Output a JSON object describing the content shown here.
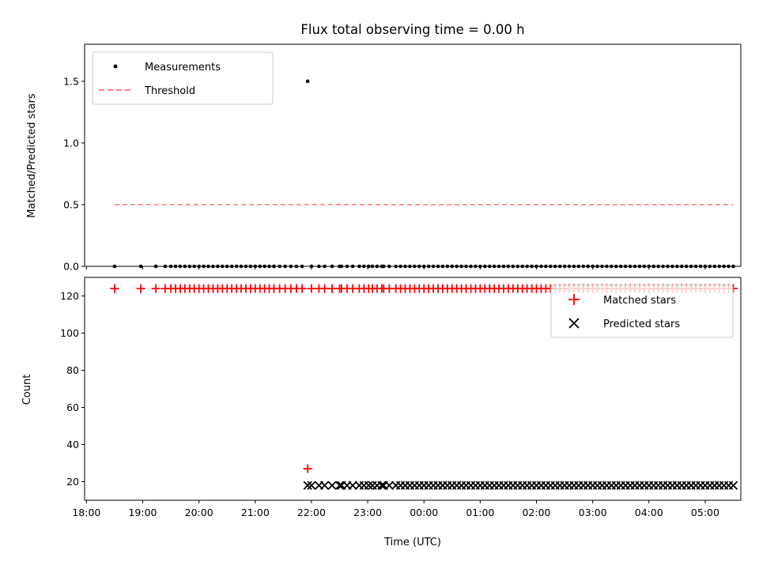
{
  "chart_data": [
    {
      "type": "scatter",
      "title": "Flux total observing time = 0.00 h",
      "xlabel": "",
      "ylabel": "Matched/Predicted stars",
      "x_unit": "minutes since 18:00 UTC",
      "xlim": [
        -2,
        698
      ],
      "ylim": [
        0,
        1.8
      ],
      "yticks": [
        0.0,
        0.5,
        1.0,
        1.5
      ],
      "ytick_labels": [
        "0.0",
        "0.5",
        "1.0",
        "1.5"
      ],
      "legend": [
        "Measurements",
        "Threshold"
      ],
      "legend_position": "top-left",
      "series": [
        {
          "name": "Measurements",
          "marker": "dot",
          "color": "#000000",
          "x": [
            30,
            58,
            74,
            84,
            90,
            95,
            100,
            105,
            110,
            115,
            120,
            125,
            130,
            135,
            140,
            145,
            150,
            155,
            160,
            165,
            170,
            175,
            180,
            185,
            190,
            195,
            200,
            200,
            206,
            212,
            218,
            224,
            230,
            236,
            240,
            248,
            254,
            262,
            270,
            272,
            278,
            284,
            291,
            296,
            301,
            305,
            310,
            315,
            317,
            323,
            330,
            335,
            340,
            345,
            350,
            355,
            360,
            365,
            370,
            375,
            380,
            385,
            390,
            395,
            400,
            405,
            410,
            415,
            420,
            425,
            430,
            435,
            440,
            445,
            450,
            455,
            460,
            465,
            470,
            475,
            480,
            485,
            490,
            495,
            500,
            505,
            510,
            515,
            520,
            525,
            530,
            535,
            540,
            545,
            550,
            555,
            560,
            565,
            570,
            575,
            580,
            585,
            590,
            595,
            600,
            605,
            610,
            615,
            620,
            625,
            630,
            635,
            640,
            645,
            650,
            655,
            660,
            665,
            670,
            675,
            680,
            685,
            690
          ],
          "y": [
            0,
            0,
            0,
            0,
            0,
            0,
            0,
            0,
            0,
            0,
            0,
            0,
            0,
            0,
            0,
            0,
            0,
            0,
            0,
            0,
            0,
            0,
            0,
            0,
            0,
            0,
            0,
            0,
            0,
            0,
            0,
            0,
            0,
            1.5,
            0,
            0,
            0,
            0,
            0,
            0,
            0,
            0,
            0,
            0,
            0,
            0,
            0,
            0,
            0,
            0,
            0,
            0,
            0,
            0,
            0,
            0,
            0,
            0,
            0,
            0,
            0,
            0,
            0,
            0,
            0,
            0,
            0,
            0,
            0,
            0,
            0,
            0,
            0,
            0,
            0,
            0,
            0,
            0,
            0,
            0,
            0,
            0,
            0,
            0,
            0,
            0,
            0,
            0,
            0,
            0,
            0,
            0,
            0,
            0,
            0,
            0,
            0,
            0,
            0,
            0,
            0,
            0,
            0,
            0,
            0,
            0,
            0,
            0,
            0,
            0,
            0,
            0,
            0,
            0,
            0,
            0,
            0,
            0,
            0,
            0,
            0,
            0,
            0
          ]
        },
        {
          "name": "Threshold",
          "style": "dashed",
          "color": "#ff7f7f",
          "x": [
            30,
            690
          ],
          "y": [
            0.5,
            0.5
          ]
        }
      ]
    },
    {
      "type": "scatter",
      "title": "",
      "xlabel": "Time (UTC)",
      "ylabel": "Count",
      "x_unit": "minutes since 18:00 UTC",
      "xlim": [
        -2,
        698
      ],
      "ylim": [
        10,
        130
      ],
      "yticks": [
        20,
        40,
        60,
        80,
        100,
        120
      ],
      "ytick_labels": [
        "20",
        "40",
        "60",
        "80",
        "100",
        "120"
      ],
      "xticks": [
        0,
        60,
        120,
        180,
        240,
        300,
        360,
        420,
        480,
        540,
        600,
        660
      ],
      "xtick_labels": [
        "18:00",
        "19:00",
        "20:00",
        "21:00",
        "22:00",
        "23:00",
        "00:00",
        "01:00",
        "02:00",
        "03:00",
        "04:00",
        "05:00"
      ],
      "legend": [
        "Matched stars",
        "Predicted stars"
      ],
      "legend_position": "top-right",
      "series": [
        {
          "name": "Matched stars",
          "marker": "plus",
          "color": "#ff0000",
          "x": [
            30,
            58,
            74,
            84,
            90,
            95,
            100,
            105,
            110,
            115,
            120,
            125,
            130,
            135,
            140,
            145,
            150,
            155,
            160,
            165,
            170,
            175,
            180,
            185,
            190,
            195,
            200,
            206,
            212,
            218,
            224,
            230,
            236,
            240,
            248,
            254,
            262,
            270,
            272,
            278,
            284,
            291,
            296,
            301,
            305,
            310,
            315,
            317,
            323,
            330,
            335,
            340,
            345,
            350,
            355,
            360,
            365,
            370,
            375,
            380,
            385,
            390,
            395,
            400,
            405,
            410,
            415,
            420,
            425,
            430,
            435,
            440,
            445,
            450,
            455,
            460,
            465,
            470,
            475,
            480,
            485,
            490,
            495,
            500,
            505,
            510,
            515,
            520,
            525,
            530,
            535,
            540,
            545,
            550,
            555,
            560,
            565,
            570,
            575,
            580,
            585,
            590,
            595,
            600,
            605,
            610,
            615,
            620,
            625,
            630,
            635,
            640,
            645,
            650,
            655,
            660,
            665,
            670,
            675,
            680,
            685,
            690
          ],
          "y": [
            124,
            124,
            124,
            124,
            124,
            124,
            124,
            124,
            124,
            124,
            124,
            124,
            124,
            124,
            124,
            124,
            124,
            124,
            124,
            124,
            124,
            124,
            124,
            124,
            124,
            124,
            124,
            124,
            124,
            124,
            124,
            124,
            27,
            124,
            124,
            124,
            124,
            124,
            124,
            124,
            124,
            124,
            124,
            124,
            124,
            124,
            124,
            124,
            124,
            124,
            124,
            124,
            124,
            124,
            124,
            124,
            124,
            124,
            124,
            124,
            124,
            124,
            124,
            124,
            124,
            124,
            124,
            124,
            124,
            124,
            124,
            124,
            124,
            124,
            124,
            124,
            124,
            124,
            124,
            124,
            124,
            124,
            124,
            124,
            124,
            124,
            124,
            124,
            124,
            124,
            124,
            124,
            124,
            124,
            124,
            124,
            124,
            124,
            124,
            124,
            124,
            124,
            124,
            124,
            124,
            124,
            124,
            124,
            124,
            124,
            124,
            124,
            124,
            124,
            124,
            124,
            124,
            124,
            124,
            124,
            124,
            124
          ]
        },
        {
          "name": "Predicted stars",
          "marker": "x",
          "color": "#000000",
          "x": [
            236,
            240,
            248,
            254,
            262,
            270,
            272,
            278,
            284,
            291,
            296,
            301,
            305,
            310,
            315,
            317,
            323,
            330,
            335,
            340,
            345,
            350,
            355,
            360,
            365,
            370,
            375,
            380,
            385,
            390,
            395,
            400,
            405,
            410,
            415,
            420,
            425,
            430,
            435,
            440,
            445,
            450,
            455,
            460,
            465,
            470,
            475,
            480,
            485,
            490,
            495,
            500,
            505,
            510,
            515,
            520,
            525,
            530,
            535,
            540,
            545,
            550,
            555,
            560,
            565,
            570,
            575,
            580,
            585,
            590,
            595,
            600,
            605,
            610,
            615,
            620,
            625,
            630,
            635,
            640,
            645,
            650,
            655,
            660,
            665,
            670,
            675,
            680,
            685,
            690
          ],
          "y": [
            18,
            18,
            18,
            18,
            18,
            18,
            18,
            18,
            18,
            18,
            18,
            18,
            18,
            18,
            18,
            18,
            18,
            18,
            18,
            18,
            18,
            18,
            18,
            18,
            18,
            18,
            18,
            18,
            18,
            18,
            18,
            18,
            18,
            18,
            18,
            18,
            18,
            18,
            18,
            18,
            18,
            18,
            18,
            18,
            18,
            18,
            18,
            18,
            18,
            18,
            18,
            18,
            18,
            18,
            18,
            18,
            18,
            18,
            18,
            18,
            18,
            18,
            18,
            18,
            18,
            18,
            18,
            18,
            18,
            18,
            18,
            18,
            18,
            18,
            18,
            18,
            18,
            18,
            18,
            18,
            18,
            18,
            18,
            18,
            18,
            18,
            18,
            18,
            18,
            18
          ]
        }
      ]
    }
  ]
}
